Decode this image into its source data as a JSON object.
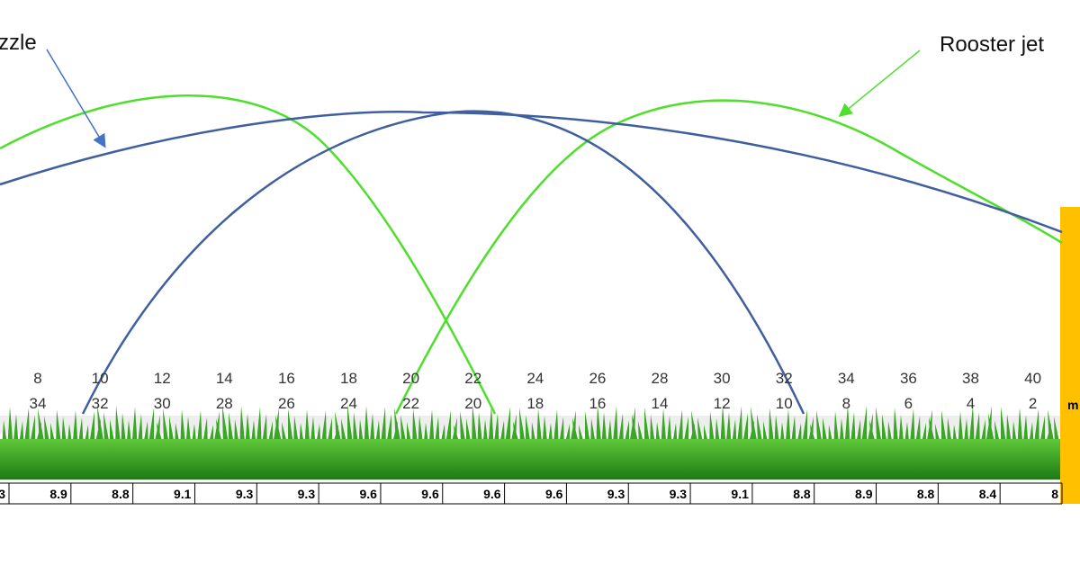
{
  "labels": {
    "nozzle": "zzle",
    "rooster_jet": "Rooster jet",
    "post": "m"
  },
  "scale": {
    "top_row": [
      8,
      10,
      12,
      14,
      16,
      18,
      20,
      22,
      24,
      26,
      28,
      30,
      32,
      34,
      36,
      38,
      40
    ],
    "bottom_row": [
      34,
      32,
      30,
      28,
      26,
      24,
      22,
      20,
      18,
      16,
      14,
      12,
      10,
      8,
      6,
      4,
      2
    ]
  },
  "table": {
    "partial_cell": "3",
    "cells": [
      8.9,
      8.8,
      9.1,
      9.3,
      9.3,
      9.6,
      9.6,
      9.6,
      9.6,
      9.3,
      9.3,
      9.1,
      8.8,
      8.9,
      8.8,
      8.4,
      8
    ]
  }
}
